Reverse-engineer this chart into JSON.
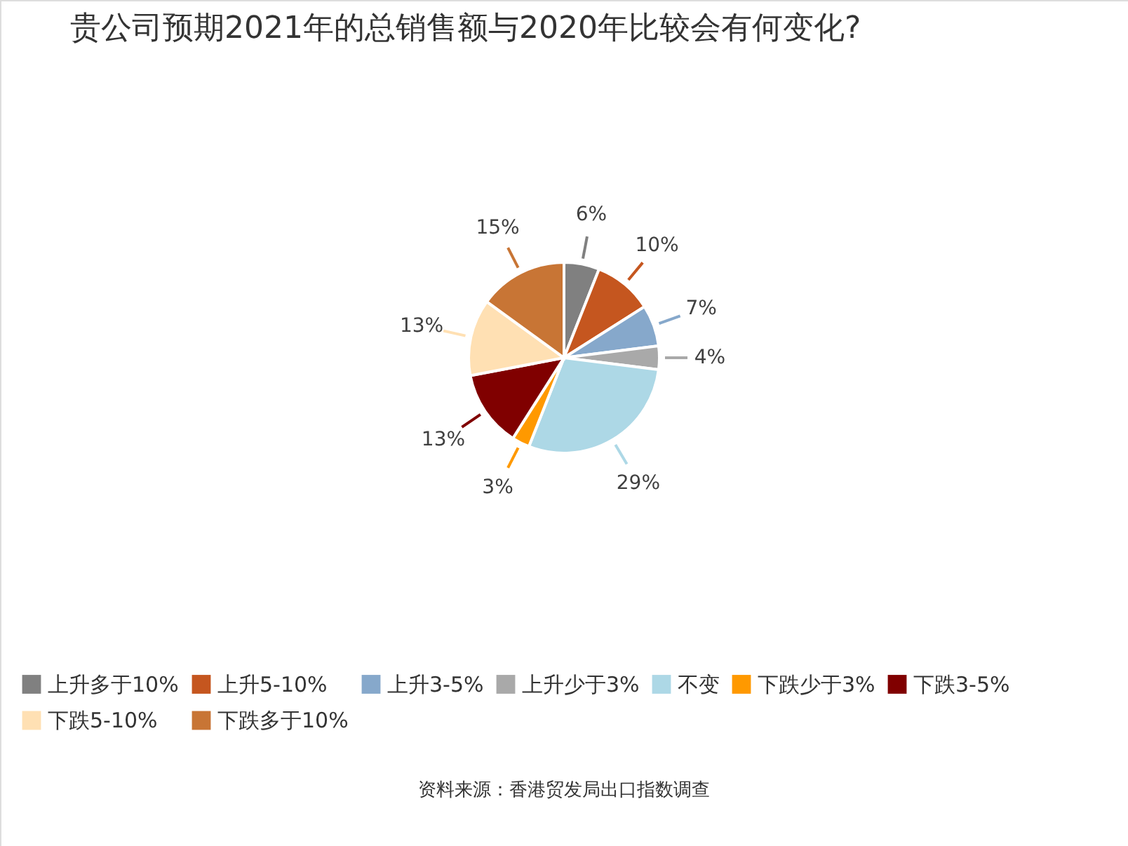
{
  "chart_data": {
    "type": "pie",
    "title": "贵公司预期2021年的总销售额与2020年比较会有何变化?",
    "categories": [
      "上升多于10%",
      "上升5-10%",
      "上升3-5%",
      "上升少于3%",
      "不变",
      "下跌少于3%",
      "下跌3-5%",
      "下跌5-10%",
      "下跌多于10%"
    ],
    "values": [
      6,
      10,
      7,
      4,
      29,
      3,
      13,
      13,
      15
    ],
    "value_labels": [
      "6%",
      "10%",
      "7%",
      "4%",
      "29%",
      "3%",
      "13%",
      "13%",
      "15%"
    ],
    "colors": [
      "#808080",
      "#c5561f",
      "#86a8cb",
      "#a9a9a9",
      "#add8e6",
      "#ff9900",
      "#800000",
      "#ffe0b3",
      "#c87535"
    ],
    "legend": "bottom",
    "annotations": [
      "资料来源：香港贸发局出口指数调查"
    ]
  }
}
